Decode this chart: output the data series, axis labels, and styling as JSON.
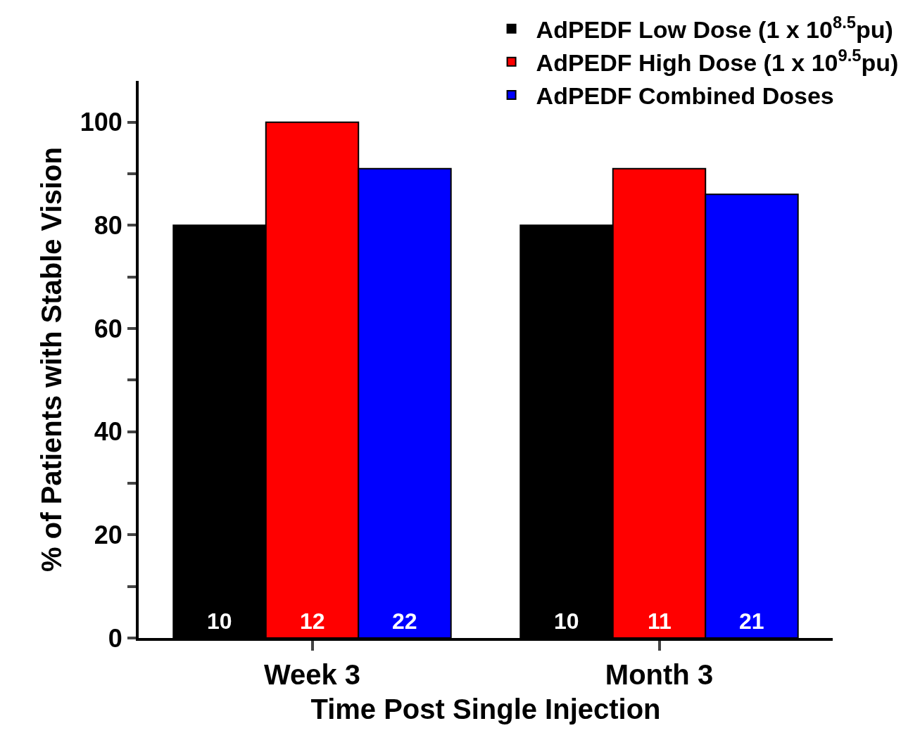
{
  "chart_data": {
    "type": "bar",
    "xlabel": "Time Post Single Injection",
    "ylabel": "% of Patients with Stable Vision",
    "categories": [
      "Week 3",
      "Month 3"
    ],
    "series": [
      {
        "name": "AdPEDF Low Dose (1 x 10$^{8.5}$pu)",
        "color": "#000000",
        "values": [
          80,
          80
        ]
      },
      {
        "name": "AdPEDF High Dose (1 x 10$^{9.5}$pu)",
        "color": "#ff0000",
        "values": [
          100,
          91
        ]
      },
      {
        "name": "AdPEDF Combined Doses",
        "color": "#0000ff",
        "values": [
          91,
          86
        ]
      }
    ],
    "annotations": [
      "10",
      "12",
      "22",
      "10",
      "11",
      "21"
    ],
    "ylim": [
      0,
      108
    ],
    "yticks": [
      0,
      {
        "value": 10,
        "label": null
      },
      20,
      {
        "value": 30,
        "label": null
      },
      40,
      {
        "value": 50,
        "label": null
      },
      60,
      {
        "value": 70,
        "label": null
      },
      80,
      {
        "value": 90,
        "label": null
      },
      100
    ],
    "legend": "top right"
  }
}
